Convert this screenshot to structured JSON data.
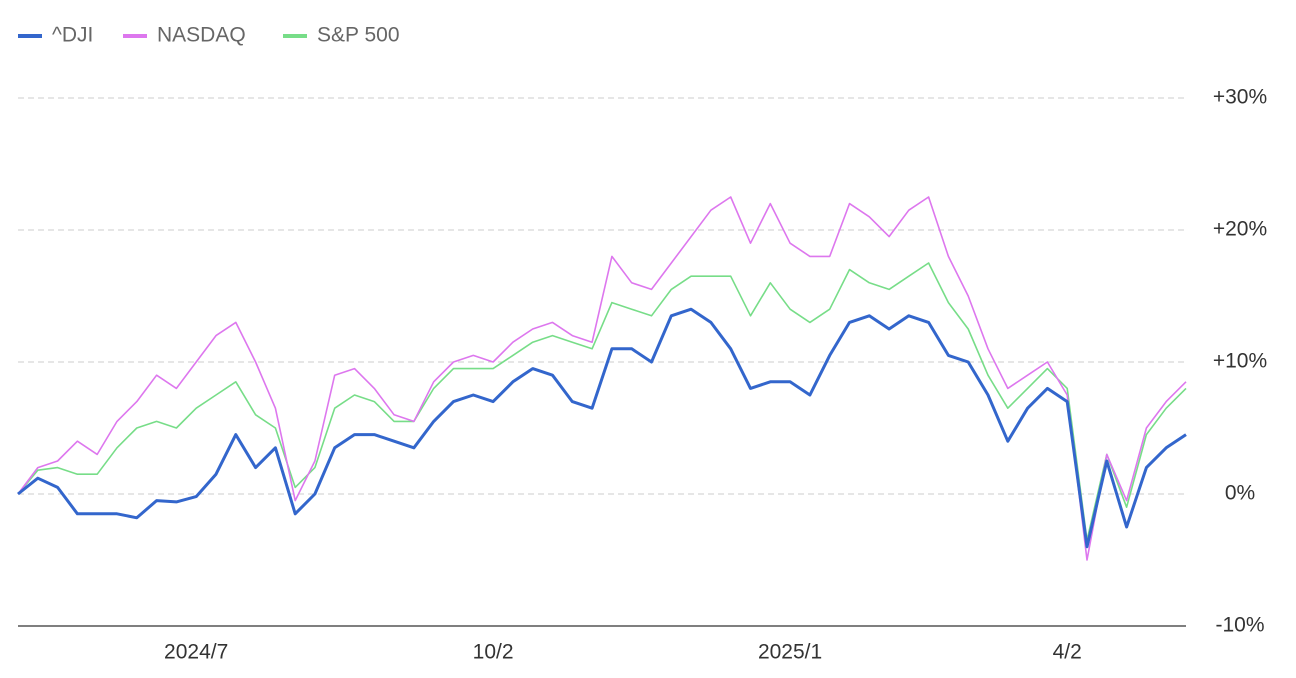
{
  "chart_data": {
    "type": "line",
    "categories": [
      null,
      null,
      null,
      null,
      null,
      null,
      null,
      null,
      null,
      "2024/7",
      null,
      null,
      null,
      null,
      null,
      null,
      null,
      null,
      null,
      null,
      null,
      null,
      null,
      null,
      "10/2",
      null,
      null,
      null,
      null,
      null,
      null,
      null,
      null,
      null,
      null,
      null,
      null,
      null,
      null,
      "2025/1",
      null,
      null,
      null,
      null,
      null,
      null,
      null,
      null,
      null,
      null,
      null,
      null,
      null,
      "4/2",
      null,
      null,
      null,
      null,
      null,
      null
    ],
    "series": [
      {
        "name": "^DJI",
        "color": "#3366cc",
        "values": [
          0,
          1.2,
          0.5,
          -1.5,
          -1.5,
          -1.5,
          -1.8,
          -0.5,
          -0.6,
          -0.2,
          1.5,
          4.5,
          2.0,
          3.5,
          -1.5,
          0.0,
          3.5,
          4.5,
          4.5,
          4.0,
          3.5,
          5.5,
          7.0,
          7.5,
          7.0,
          8.5,
          9.5,
          9.0,
          7.0,
          6.5,
          11.0,
          11.0,
          10.0,
          13.5,
          14.0,
          13.0,
          11.0,
          8.0,
          8.5,
          8.5,
          7.5,
          10.5,
          13.0,
          13.5,
          12.5,
          13.5,
          13.0,
          10.5,
          10.0,
          7.5,
          4.0,
          6.5,
          8.0,
          7.0,
          -4.0,
          2.5,
          -2.5,
          2.0,
          3.5,
          4.5
        ]
      },
      {
        "name": "NASDAQ",
        "color": "#dd77ee",
        "values": [
          0,
          2,
          2.5,
          4,
          3,
          5.5,
          7,
          9,
          8,
          10,
          12,
          13,
          10,
          6.5,
          -0.5,
          2.5,
          9,
          9.5,
          8,
          6,
          5.5,
          8.5,
          10,
          10.5,
          10,
          11.5,
          12.5,
          13,
          12,
          11.5,
          18,
          16,
          15.5,
          17.5,
          19.5,
          21.5,
          22.5,
          19,
          22,
          19,
          18,
          18,
          22,
          21,
          19.5,
          21.5,
          22.5,
          18,
          15,
          11,
          8,
          9,
          10,
          7.5,
          -5,
          3,
          -0.5,
          5,
          7,
          8.5
        ]
      },
      {
        "name": "S&P 500",
        "color": "#77dd88",
        "values": [
          0,
          1.8,
          2,
          1.5,
          1.5,
          3.5,
          5,
          5.5,
          5,
          6.5,
          7.5,
          8.5,
          6,
          5,
          0.5,
          2,
          6.5,
          7.5,
          7,
          5.5,
          5.5,
          8,
          9.5,
          9.5,
          9.5,
          10.5,
          11.5,
          12,
          11.5,
          11,
          14.5,
          14,
          13.5,
          15.5,
          16.5,
          16.5,
          16.5,
          13.5,
          16,
          14,
          13,
          14,
          17,
          16,
          15.5,
          16.5,
          17.5,
          14.5,
          12.5,
          9,
          6.5,
          8,
          9.5,
          8,
          -3.5,
          3,
          -1,
          4.5,
          6.5,
          8
        ]
      }
    ],
    "ylim": [
      -10,
      30
    ],
    "yticks": [
      {
        "value": 30,
        "label": "+30%"
      },
      {
        "value": 20,
        "label": "+20%"
      },
      {
        "value": 10,
        "label": "+10%"
      },
      {
        "value": 0,
        "label": "0%"
      },
      {
        "value": -10,
        "label": "-10%"
      }
    ],
    "grid": true,
    "legend": "top-left"
  }
}
